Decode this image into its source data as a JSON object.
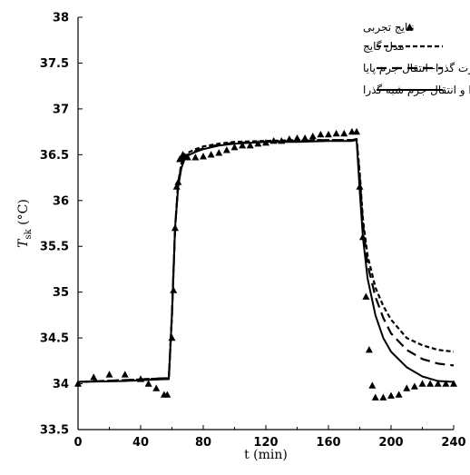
{
  "chart_data": {
    "type": "line",
    "xlabel": "t (min)",
    "ylabel": "T_sk (°C)",
    "ylabel_main": "T",
    "ylabel_sub": "sk",
    "ylabel_unit": " (°C)",
    "xlim": [
      0,
      240
    ],
    "ylim": [
      33.5,
      38
    ],
    "x_ticks": [
      0,
      40,
      80,
      120,
      160,
      200,
      240
    ],
    "y_ticks": [
      33.5,
      34,
      34.5,
      35,
      35.5,
      36,
      36.5,
      37,
      37.5,
      38
    ],
    "grid": false,
    "legend_position": "top-left",
    "series": [
      {
        "name": "نتایج تجربی",
        "style": "markers",
        "marker": "triangle",
        "color": "#000000",
        "x": [
          0,
          10,
          20,
          30,
          40,
          45,
          50,
          55,
          57,
          60,
          61,
          62,
          63,
          64,
          65,
          66,
          67,
          68,
          70,
          75,
          80,
          85,
          90,
          95,
          100,
          105,
          110,
          115,
          120,
          125,
          130,
          135,
          140,
          145,
          150,
          155,
          160,
          165,
          170,
          175,
          178,
          180,
          182,
          184,
          186,
          188,
          190,
          195,
          200,
          205,
          210,
          215,
          220,
          225,
          230,
          235,
          240
        ],
        "y": [
          34.0,
          34.07,
          34.1,
          34.1,
          34.05,
          34.0,
          33.95,
          33.88,
          33.88,
          34.5,
          35.02,
          35.7,
          36.15,
          36.2,
          36.45,
          36.45,
          36.5,
          36.48,
          36.47,
          36.47,
          36.48,
          36.5,
          36.52,
          36.55,
          36.58,
          36.6,
          36.6,
          36.62,
          36.63,
          36.65,
          36.65,
          36.67,
          36.68,
          36.68,
          36.7,
          36.72,
          36.72,
          36.73,
          36.73,
          36.75,
          36.75,
          36.15,
          35.6,
          34.95,
          34.37,
          33.98,
          33.85,
          33.85,
          33.87,
          33.88,
          33.95,
          33.97,
          34.0,
          34.0,
          34.0,
          34.0,
          34.0
        ]
      },
      {
        "name": "مدل گایج",
        "style": "dotted",
        "color": "#000000",
        "x": [
          0,
          30,
          55,
          58,
          60,
          62,
          64,
          66,
          68,
          70,
          75,
          80,
          90,
          100,
          120,
          140,
          160,
          175,
          178,
          180,
          182,
          185,
          190,
          195,
          200,
          210,
          220,
          230,
          240
        ],
        "y": [
          34.02,
          34.04,
          34.06,
          34.06,
          34.75,
          35.7,
          36.2,
          36.4,
          36.48,
          36.52,
          36.56,
          36.59,
          36.62,
          36.64,
          36.65,
          36.66,
          36.66,
          36.66,
          36.67,
          36.3,
          35.8,
          35.4,
          35.05,
          34.85,
          34.7,
          34.5,
          34.42,
          34.37,
          34.35
        ]
      },
      {
        "name": "انتقال حرارت گذرا- انتقال جرم پایا",
        "style": "dashed",
        "color": "#000000",
        "x": [
          0,
          30,
          55,
          58,
          60,
          62,
          64,
          66,
          68,
          70,
          75,
          80,
          90,
          100,
          120,
          140,
          160,
          175,
          178,
          180,
          182,
          185,
          190,
          195,
          200,
          210,
          220,
          230,
          240
        ],
        "y": [
          34.02,
          34.04,
          34.06,
          34.06,
          34.75,
          35.7,
          36.18,
          36.38,
          36.46,
          36.5,
          36.54,
          36.57,
          36.61,
          36.63,
          36.64,
          36.65,
          36.66,
          36.66,
          36.67,
          36.25,
          35.75,
          35.3,
          34.95,
          34.72,
          34.55,
          34.37,
          34.27,
          34.22,
          34.2
        ]
      },
      {
        "name": "انتقال حرارت گذرا و انتقال جرم شبه گذرا",
        "style": "solid",
        "color": "#000000",
        "x": [
          0,
          30,
          55,
          58,
          60,
          62,
          64,
          66,
          68,
          70,
          75,
          80,
          90,
          100,
          120,
          140,
          160,
          175,
          178,
          180,
          182,
          185,
          190,
          195,
          200,
          210,
          220,
          230,
          240
        ],
        "y": [
          34.02,
          34.03,
          34.05,
          34.05,
          34.75,
          35.7,
          36.15,
          36.35,
          36.45,
          36.49,
          36.53,
          36.56,
          36.6,
          36.62,
          36.64,
          36.64,
          36.65,
          36.65,
          36.66,
          36.1,
          35.6,
          35.15,
          34.75,
          34.5,
          34.35,
          34.18,
          34.08,
          34.03,
          34.02
        ]
      }
    ]
  }
}
